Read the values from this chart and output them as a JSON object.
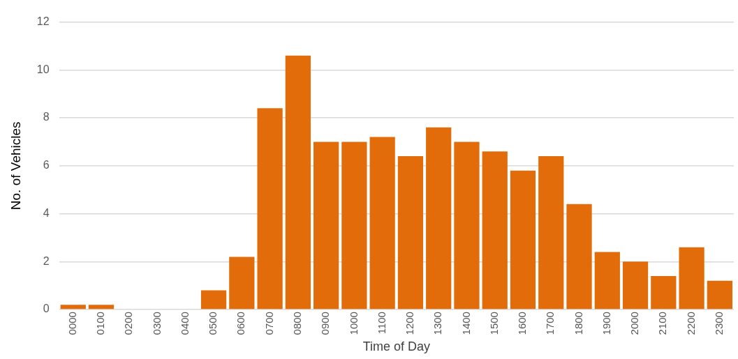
{
  "chart_data": {
    "type": "bar",
    "xlabel": "Time of Day",
    "ylabel": "No. of Vehicles",
    "categories": [
      "0000",
      "0100",
      "0200",
      "0300",
      "0400",
      "0500",
      "0600",
      "0700",
      "0800",
      "0900",
      "1000",
      "1100",
      "1200",
      "1300",
      "1400",
      "1500",
      "1600",
      "1700",
      "1800",
      "1900",
      "2000",
      "2100",
      "2200",
      "2300"
    ],
    "values": [
      0.2,
      0.2,
      0,
      0,
      0,
      0.8,
      2.2,
      8.4,
      10.6,
      7,
      7,
      7.2,
      6.4,
      7.6,
      7,
      6.6,
      5.8,
      6.4,
      4.4,
      2.4,
      2,
      1.4,
      2.6,
      1.2
    ],
    "color": "#e36c0a",
    "ylim": [
      0,
      12
    ],
    "yticks": [
      0,
      2,
      4,
      6,
      8,
      10,
      12
    ],
    "grid": "y",
    "legend": false
  }
}
